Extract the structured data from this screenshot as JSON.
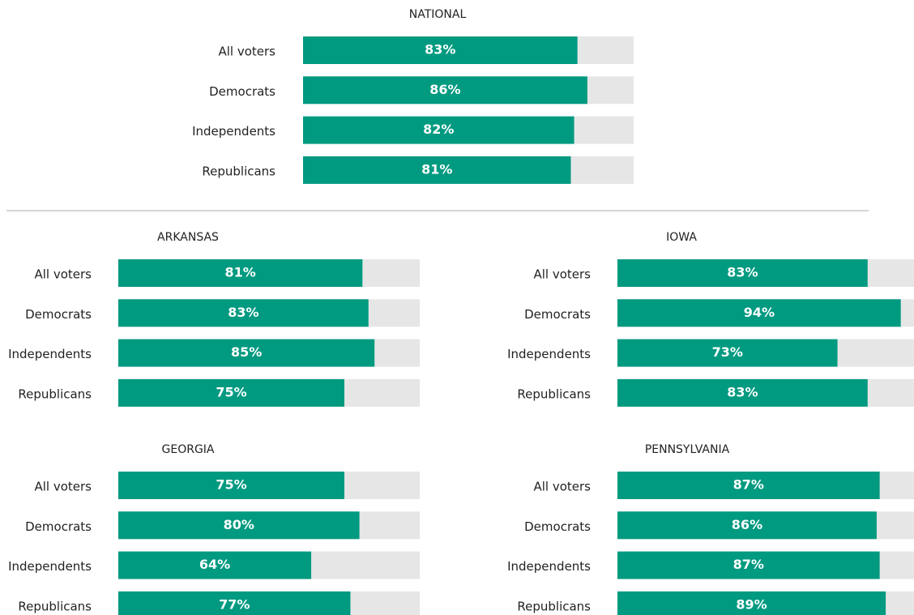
{
  "chart_data": [
    {
      "type": "bar",
      "title": "NATIONAL",
      "categories": [
        "All voters",
        "Democrats",
        "Independents",
        "Republicans"
      ],
      "values": [
        83,
        86,
        82,
        81
      ],
      "value_labels": [
        "83%",
        "86%",
        "82%",
        "81%"
      ],
      "xlim": [
        0,
        100
      ],
      "color": "#009a80"
    },
    {
      "type": "bar",
      "title": "ARKANSAS",
      "categories": [
        "All voters",
        "Democrats",
        "Independents",
        "Republicans"
      ],
      "values": [
        81,
        83,
        85,
        75
      ],
      "value_labels": [
        "81%",
        "83%",
        "85%",
        "75%"
      ],
      "xlim": [
        0,
        100
      ],
      "color": "#009a80"
    },
    {
      "type": "bar",
      "title": "IOWA",
      "categories": [
        "All voters",
        "Democrats",
        "Independents",
        "Republicans"
      ],
      "values": [
        83,
        94,
        73,
        83
      ],
      "value_labels": [
        "83%",
        "94%",
        "73%",
        "83%"
      ],
      "xlim": [
        0,
        100
      ],
      "color": "#009a80"
    },
    {
      "type": "bar",
      "title": "GEORGIA",
      "categories": [
        "All voters",
        "Democrats",
        "Independents",
        "Republicans"
      ],
      "values": [
        75,
        80,
        64,
        77
      ],
      "value_labels": [
        "75%",
        "80%",
        "64%",
        "77%"
      ],
      "xlim": [
        0,
        100
      ],
      "color": "#009a80"
    },
    {
      "type": "bar",
      "title": "PENNSYLVANIA",
      "categories": [
        "All voters",
        "Democrats",
        "Independents",
        "Republicans"
      ],
      "values": [
        87,
        86,
        87,
        89
      ],
      "value_labels": [
        "87%",
        "86%",
        "87%",
        "89%"
      ],
      "xlim": [
        0,
        100
      ],
      "color": "#009a80"
    }
  ]
}
